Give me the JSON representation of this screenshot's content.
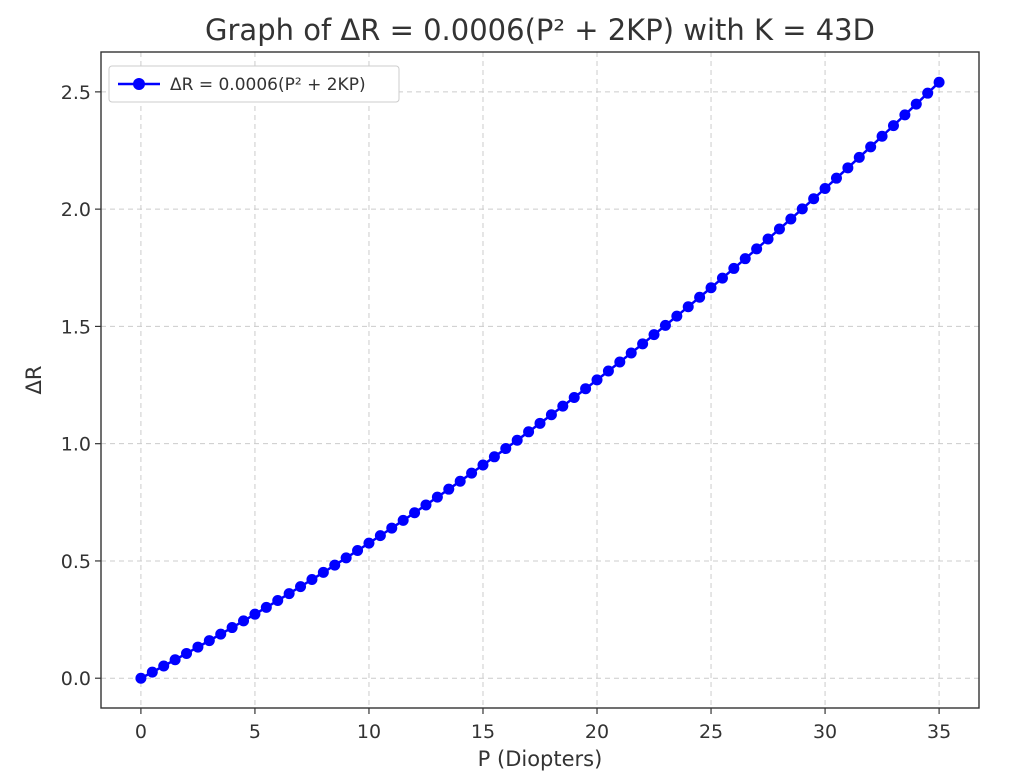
{
  "chart_data": {
    "type": "line",
    "title": "Graph of ΔR = 0.0006(P² + 2KP) with K = 43D",
    "xlabel": "P (Diopters)",
    "ylabel": "ΔR",
    "xlim": [
      -1.75,
      36.75
    ],
    "ylim": [
      -0.127,
      2.67
    ],
    "xticks": [
      0,
      5,
      10,
      15,
      20,
      25,
      30,
      35
    ],
    "xtick_labels": [
      "0",
      "5",
      "10",
      "15",
      "20",
      "25",
      "30",
      "35"
    ],
    "yticks": [
      0.0,
      0.5,
      1.0,
      1.5,
      2.0,
      2.5
    ],
    "ytick_labels": [
      "0.0",
      "0.5",
      "1.0",
      "1.5",
      "2.0",
      "2.5"
    ],
    "grid": true,
    "legend_position": "top-left",
    "series": [
      {
        "name": "ΔR = 0.0006(P² + 2KP)",
        "color": "#0000ff",
        "marker": "circle",
        "x": [
          0.0,
          0.5,
          1.0,
          1.5,
          2.0,
          2.5,
          3.0,
          3.5,
          4.0,
          4.5,
          5.0,
          5.5,
          6.0,
          6.5,
          7.0,
          7.5,
          8.0,
          8.5,
          9.0,
          9.5,
          10.0,
          10.5,
          11.0,
          11.5,
          12.0,
          12.5,
          13.0,
          13.5,
          14.0,
          14.5,
          15.0,
          15.5,
          16.0,
          16.5,
          17.0,
          17.5,
          18.0,
          18.5,
          19.0,
          19.5,
          20.0,
          20.5,
          21.0,
          21.5,
          22.0,
          22.5,
          23.0,
          23.5,
          24.0,
          24.5,
          25.0,
          25.5,
          26.0,
          26.5,
          27.0,
          27.5,
          28.0,
          28.5,
          29.0,
          29.5,
          30.0,
          30.5,
          31.0,
          31.5,
          32.0,
          32.5,
          33.0,
          33.5,
          34.0,
          34.5,
          35.0
        ],
        "y": [
          0.0,
          0.0259,
          0.0522,
          0.0787,
          0.1056,
          0.1328,
          0.1602,
          0.188,
          0.216,
          0.2444,
          0.273,
          0.302,
          0.3312,
          0.3608,
          0.3906,
          0.4208,
          0.4512,
          0.482,
          0.513,
          0.5444,
          0.576,
          0.608,
          0.6402,
          0.6728,
          0.7056,
          0.7388,
          0.7722,
          0.806,
          0.84,
          0.8744,
          0.909,
          0.944,
          0.9792,
          1.0148,
          1.0506,
          1.0868,
          1.1232,
          1.16,
          1.197,
          1.2344,
          1.272,
          1.31,
          1.3482,
          1.3868,
          1.4256,
          1.4648,
          1.5042,
          1.544,
          1.584,
          1.6244,
          1.665,
          1.706,
          1.7472,
          1.7888,
          1.8306,
          1.8728,
          1.9152,
          1.958,
          2.001,
          2.0444,
          2.088,
          2.132,
          2.1762,
          2.2208,
          2.2656,
          2.3108,
          2.3562,
          2.402,
          2.448,
          2.4944,
          2.541
        ]
      }
    ]
  }
}
